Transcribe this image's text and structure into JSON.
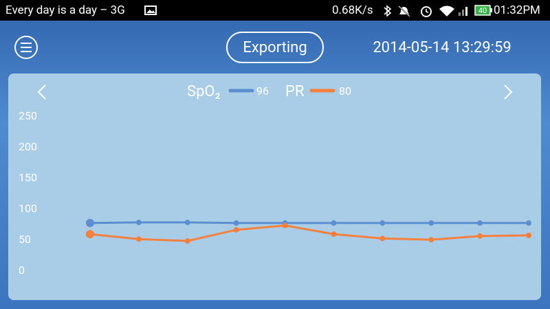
{
  "status_bar": {
    "carrier": "Every day is a day – 3G",
    "speed": "0.68K/s",
    "battery": "40",
    "time": "01:32PM"
  },
  "header": {
    "button": "Exporting",
    "datetime": "2014-05-14 13:29:59"
  },
  "chart_data": {
    "type": "line",
    "series": [
      {
        "name": "SpO₂",
        "color": "#5b8fd0",
        "current": 96,
        "values": [
          78,
          79,
          79,
          78,
          78,
          78,
          78,
          78,
          78,
          78
        ]
      },
      {
        "name": "PR",
        "color": "#f5803e",
        "current": 80,
        "values": [
          60,
          52,
          49,
          67,
          74,
          60,
          53,
          51,
          57,
          58
        ]
      }
    ],
    "ylim": [
      0,
      250
    ],
    "yticks": [
      0,
      50,
      100,
      150,
      200,
      250
    ],
    "grid": false
  }
}
